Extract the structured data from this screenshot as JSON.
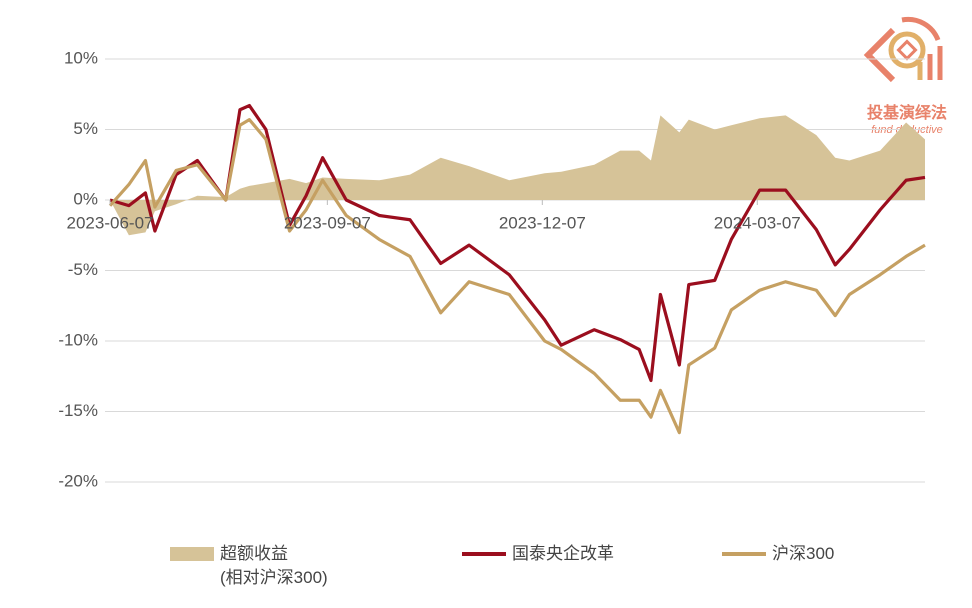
{
  "chart_data": {
    "type": "line",
    "x": [
      "2023-06-07",
      "2023-06-15",
      "2023-06-22",
      "2023-06-26",
      "2023-07-05",
      "2023-07-14",
      "2023-07-26",
      "2023-08-01",
      "2023-08-05",
      "2023-08-12",
      "2023-08-22",
      "2023-08-29",
      "2023-09-05",
      "2023-09-15",
      "2023-09-29",
      "2023-10-12",
      "2023-10-25",
      "2023-11-06",
      "2023-11-23",
      "2023-12-08",
      "2023-12-15",
      "2023-12-29",
      "2024-01-09",
      "2024-01-17",
      "2024-01-22",
      "2024-01-26",
      "2024-02-03",
      "2024-02-07",
      "2024-02-18",
      "2024-02-25",
      "2024-03-08",
      "2024-03-19",
      "2024-04-01",
      "2024-04-09",
      "2024-04-15",
      "2024-04-28",
      "2024-05-09",
      "2024-05-17"
    ],
    "series": [
      {
        "name": "超额收益\n(相对沪深300)",
        "color": "#d6c398",
        "fill": "area",
        "values": [
          0,
          -2.5,
          -2.3,
          -0.8,
          -0.3,
          0.3,
          0.2,
          0.8,
          1.0,
          1.2,
          1.5,
          1.2,
          1.6,
          1.5,
          1.4,
          1.8,
          3.0,
          2.4,
          1.4,
          1.9,
          2.0,
          2.5,
          3.5,
          3.5,
          2.8,
          6.0,
          4.8,
          5.7,
          5.0,
          5.3,
          5.8,
          6.0,
          4.6,
          3.0,
          2.8,
          3.5,
          5.5,
          4.3
        ]
      },
      {
        "name": "国泰央企改革",
        "color": "#9b0e1e",
        "values": [
          0,
          -0.4,
          0.5,
          -2.2,
          1.8,
          2.8,
          0,
          6.4,
          6.7,
          5.0,
          -1.8,
          0.3,
          3.0,
          0,
          -1.1,
          -1.4,
          -4.5,
          -3.2,
          -5.3,
          -8.5,
          -10.3,
          -9.2,
          -9.9,
          -10.6,
          -12.8,
          -6.7,
          -11.7,
          -6.0,
          -5.7,
          -2.8,
          0.7,
          0.7,
          -2.1,
          -4.6,
          -3.5,
          -0.7,
          1.4,
          1.6
        ]
      },
      {
        "name": "沪深300",
        "color": "#c5a062",
        "values": [
          -0.4,
          1.1,
          2.8,
          -0.5,
          2.1,
          2.5,
          0,
          5.3,
          5.7,
          4.3,
          -2.2,
          -0.7,
          1.4,
          -1.1,
          -2.8,
          -4.0,
          -8.0,
          -5.8,
          -6.7,
          -10.0,
          -10.6,
          -12.3,
          -14.2,
          -14.2,
          -15.4,
          -13.5,
          -16.5,
          -11.7,
          -10.5,
          -7.8,
          -6.4,
          -5.8,
          -6.4,
          -8.2,
          -6.7,
          -5.3,
          -4.0,
          -3.2
        ]
      }
    ],
    "xlim": [
      "2023-06-07",
      "2024-05-17"
    ],
    "xticks": [
      "2023-06-07",
      "2023-09-07",
      "2023-12-07",
      "2024-03-07"
    ],
    "ylim": [
      -20,
      10
    ],
    "yticks": [
      {
        "value": -20,
        "label": "-20%"
      },
      {
        "value": -15,
        "label": "-15%"
      },
      {
        "value": -10,
        "label": "-10%"
      },
      {
        "value": -5,
        "label": "-5%"
      },
      {
        "value": 0,
        "label": "0%"
      },
      {
        "value": 5,
        "label": "5%"
      },
      {
        "value": 10,
        "label": "10%"
      }
    ],
    "grid": true,
    "legend": "bottom"
  },
  "logo": {
    "title": "投基演绎法",
    "subtitle": "fund deductive"
  }
}
